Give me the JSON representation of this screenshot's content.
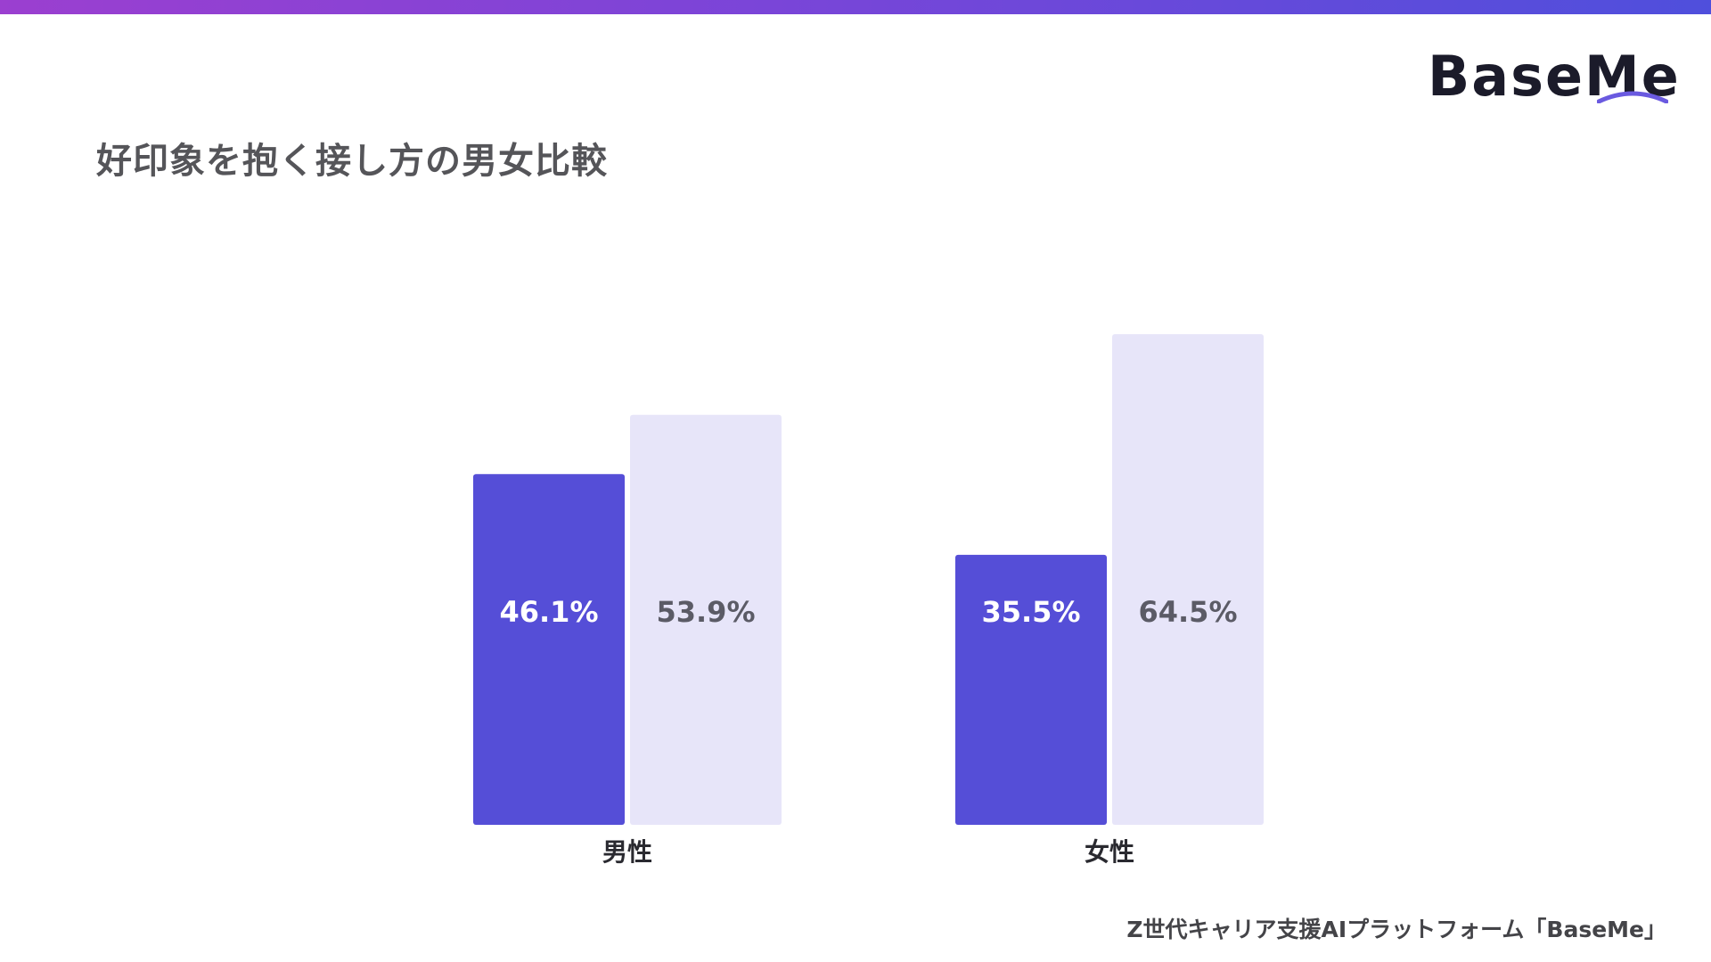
{
  "logo": {
    "text": "BaseMe"
  },
  "title": "好印象を抱く接し方の男女比較",
  "footer": "Z世代キャリア支援AIプラットフォーム「BaseMe」",
  "colors": {
    "accent": "#554ed7",
    "light": "#e7e5f9",
    "title": "#555559",
    "value_dark": "#5b5b66"
  },
  "chart_data": {
    "type": "bar",
    "categories": [
      "男性",
      "女性"
    ],
    "series": [
      {
        "values": [
          46.1,
          35.5
        ],
        "labels": [
          "46.1%",
          "35.5%"
        ],
        "color": "#554ed7"
      },
      {
        "values": [
          53.9,
          64.5
        ],
        "labels": [
          "53.9%",
          "64.5%"
        ],
        "color": "#e7e5f9"
      }
    ],
    "ylim": [
      0,
      100
    ],
    "grid": false,
    "title": "",
    "xlabel": "",
    "ylabel": ""
  }
}
